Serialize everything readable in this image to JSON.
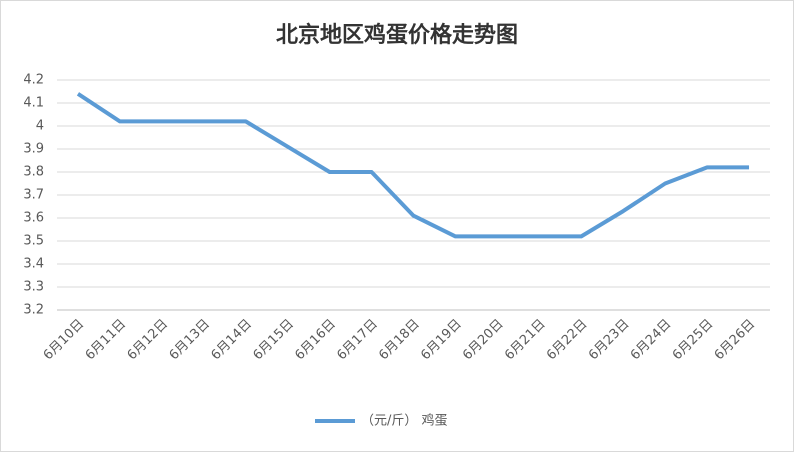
{
  "chart_data": {
    "type": "line",
    "title": "北京地区鸡蛋价格走势图",
    "categories": [
      "6月10日",
      "6月11日",
      "6月12日",
      "6月13日",
      "6月14日",
      "6月15日",
      "6月16日",
      "6月17日",
      "6月18日",
      "6月19日",
      "6月20日",
      "6月21日",
      "6月22日",
      "6月23日",
      "6月24日",
      "6月25日",
      "6月26日"
    ],
    "series": [
      {
        "name": "（元/斤） 鸡蛋",
        "color": "#5b9bd5",
        "values": [
          4.14,
          4.02,
          4.02,
          4.02,
          4.02,
          3.91,
          3.8,
          3.8,
          3.61,
          3.52,
          3.52,
          3.52,
          3.52,
          3.63,
          3.75,
          3.82,
          3.82
        ]
      }
    ],
    "ylim": [
      3.2,
      4.2
    ],
    "yticks": [
      3.2,
      3.3,
      3.4,
      3.5,
      3.6,
      3.7,
      3.8,
      3.9,
      4,
      4.1,
      4.2
    ],
    "grid": true,
    "legend": "bottom"
  }
}
